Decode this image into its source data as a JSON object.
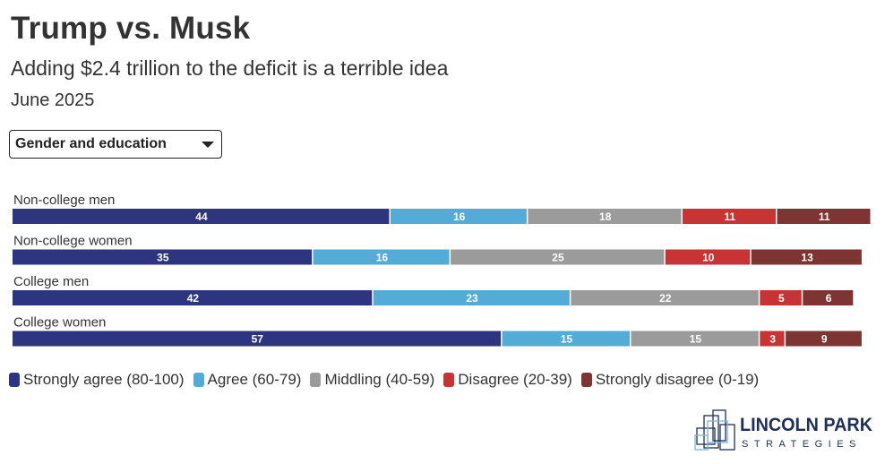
{
  "title": "Trump vs. Musk",
  "subtitle": "Adding $2.4 trillion to the deficit is a terrible idea",
  "date": "June 2025",
  "filter": {
    "selected": "Gender and education"
  },
  "chart_data": {
    "type": "bar",
    "orientation": "horizontal",
    "stacked": true,
    "categories": [
      "Non-college men",
      "Non-college women",
      "College men",
      "College women"
    ],
    "series": [
      {
        "name": "Strongly agree (80-100)",
        "color": "#2e3580",
        "values": [
          44,
          35,
          42,
          57
        ]
      },
      {
        "name": "Agree (60-79)",
        "color": "#53acd8",
        "values": [
          16,
          16,
          23,
          15
        ]
      },
      {
        "name": "Middling (40-59)",
        "color": "#9b9b9b",
        "values": [
          18,
          25,
          22,
          15
        ]
      },
      {
        "name": "Disagree (20-39)",
        "color": "#c83434",
        "values": [
          11,
          10,
          5,
          3
        ]
      },
      {
        "name": "Strongly disagree (0-19)",
        "color": "#7f3434",
        "values": [
          11,
          13,
          6,
          9
        ]
      }
    ],
    "xlim": [
      0,
      100
    ],
    "legend_position": "bottom"
  },
  "logo": {
    "line1": "LINCOLN PARK",
    "line2": "STRATEGIES",
    "color": "#1f2f5a"
  }
}
